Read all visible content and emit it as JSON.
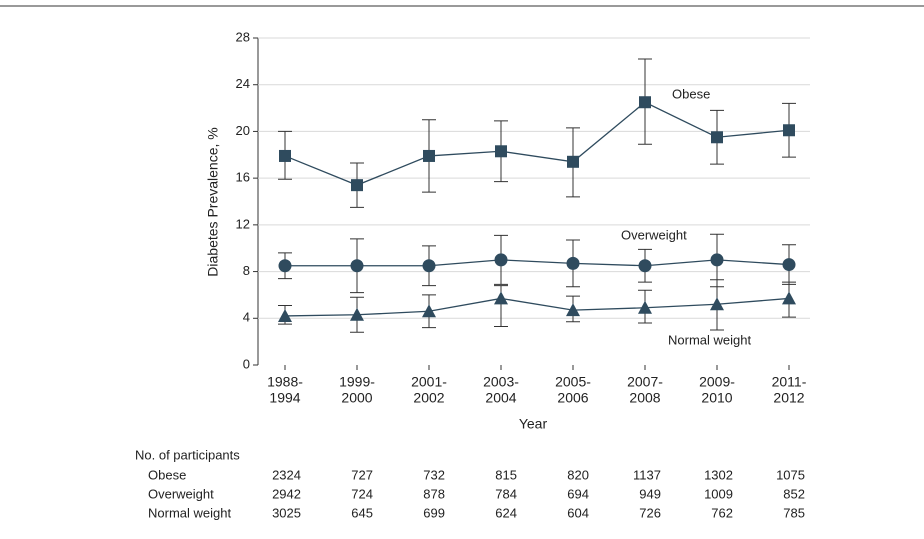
{
  "chart_data": {
    "type": "line",
    "y_label": "Diabetes Prevalence, %",
    "x_label": "Year",
    "categories": [
      [
        "1988-",
        "1994"
      ],
      [
        "1999-",
        "2000"
      ],
      [
        "2001-",
        "2002"
      ],
      [
        "2003-",
        "2004"
      ],
      [
        "2005-",
        "2006"
      ],
      [
        "2007-",
        "2008"
      ],
      [
        "2009-",
        "2010"
      ],
      [
        "2011-",
        "2012"
      ]
    ],
    "ylim": [
      0,
      28
    ],
    "yticks": [
      0,
      4,
      8,
      12,
      16,
      20,
      24,
      28
    ],
    "grid": true,
    "series": [
      {
        "name": "Obese",
        "marker": "square",
        "color": "#2f4b5e",
        "values": [
          17.9,
          15.4,
          17.9,
          18.3,
          17.4,
          22.5,
          19.5,
          20.1
        ],
        "lower": [
          15.9,
          13.5,
          14.8,
          15.7,
          14.4,
          18.9,
          17.2,
          17.8
        ],
        "upper": [
          20.0,
          17.3,
          21.0,
          20.9,
          20.3,
          26.2,
          21.8,
          22.4
        ]
      },
      {
        "name": "Overweight",
        "marker": "circle",
        "color": "#2f4b5e",
        "values": [
          8.5,
          8.5,
          8.5,
          9.0,
          8.7,
          8.5,
          9.0,
          8.6
        ],
        "lower": [
          7.4,
          6.2,
          6.8,
          6.9,
          6.7,
          7.1,
          6.7,
          6.9
        ],
        "upper": [
          9.6,
          10.8,
          10.2,
          11.1,
          10.7,
          9.9,
          11.2,
          10.3
        ]
      },
      {
        "name": "Normal weight",
        "marker": "triangle",
        "color": "#2f4b5e",
        "values": [
          4.2,
          4.3,
          4.6,
          5.7,
          4.7,
          4.9,
          5.2,
          5.7
        ],
        "lower": [
          3.5,
          2.8,
          3.2,
          3.3,
          3.7,
          3.6,
          3.0,
          4.1
        ],
        "upper": [
          5.1,
          5.8,
          6.0,
          6.8,
          5.9,
          6.4,
          7.3,
          7.1
        ]
      }
    ],
    "participants": {
      "title": "No. of participants",
      "rows": [
        {
          "name": "Obese",
          "values": [
            2324,
            727,
            732,
            815,
            820,
            1137,
            1302,
            1075
          ]
        },
        {
          "name": "Overweight",
          "values": [
            2942,
            724,
            878,
            784,
            694,
            949,
            1009,
            852
          ]
        },
        {
          "name": "Normal weight",
          "values": [
            3025,
            645,
            699,
            624,
            604,
            726,
            762,
            785
          ]
        }
      ]
    }
  }
}
